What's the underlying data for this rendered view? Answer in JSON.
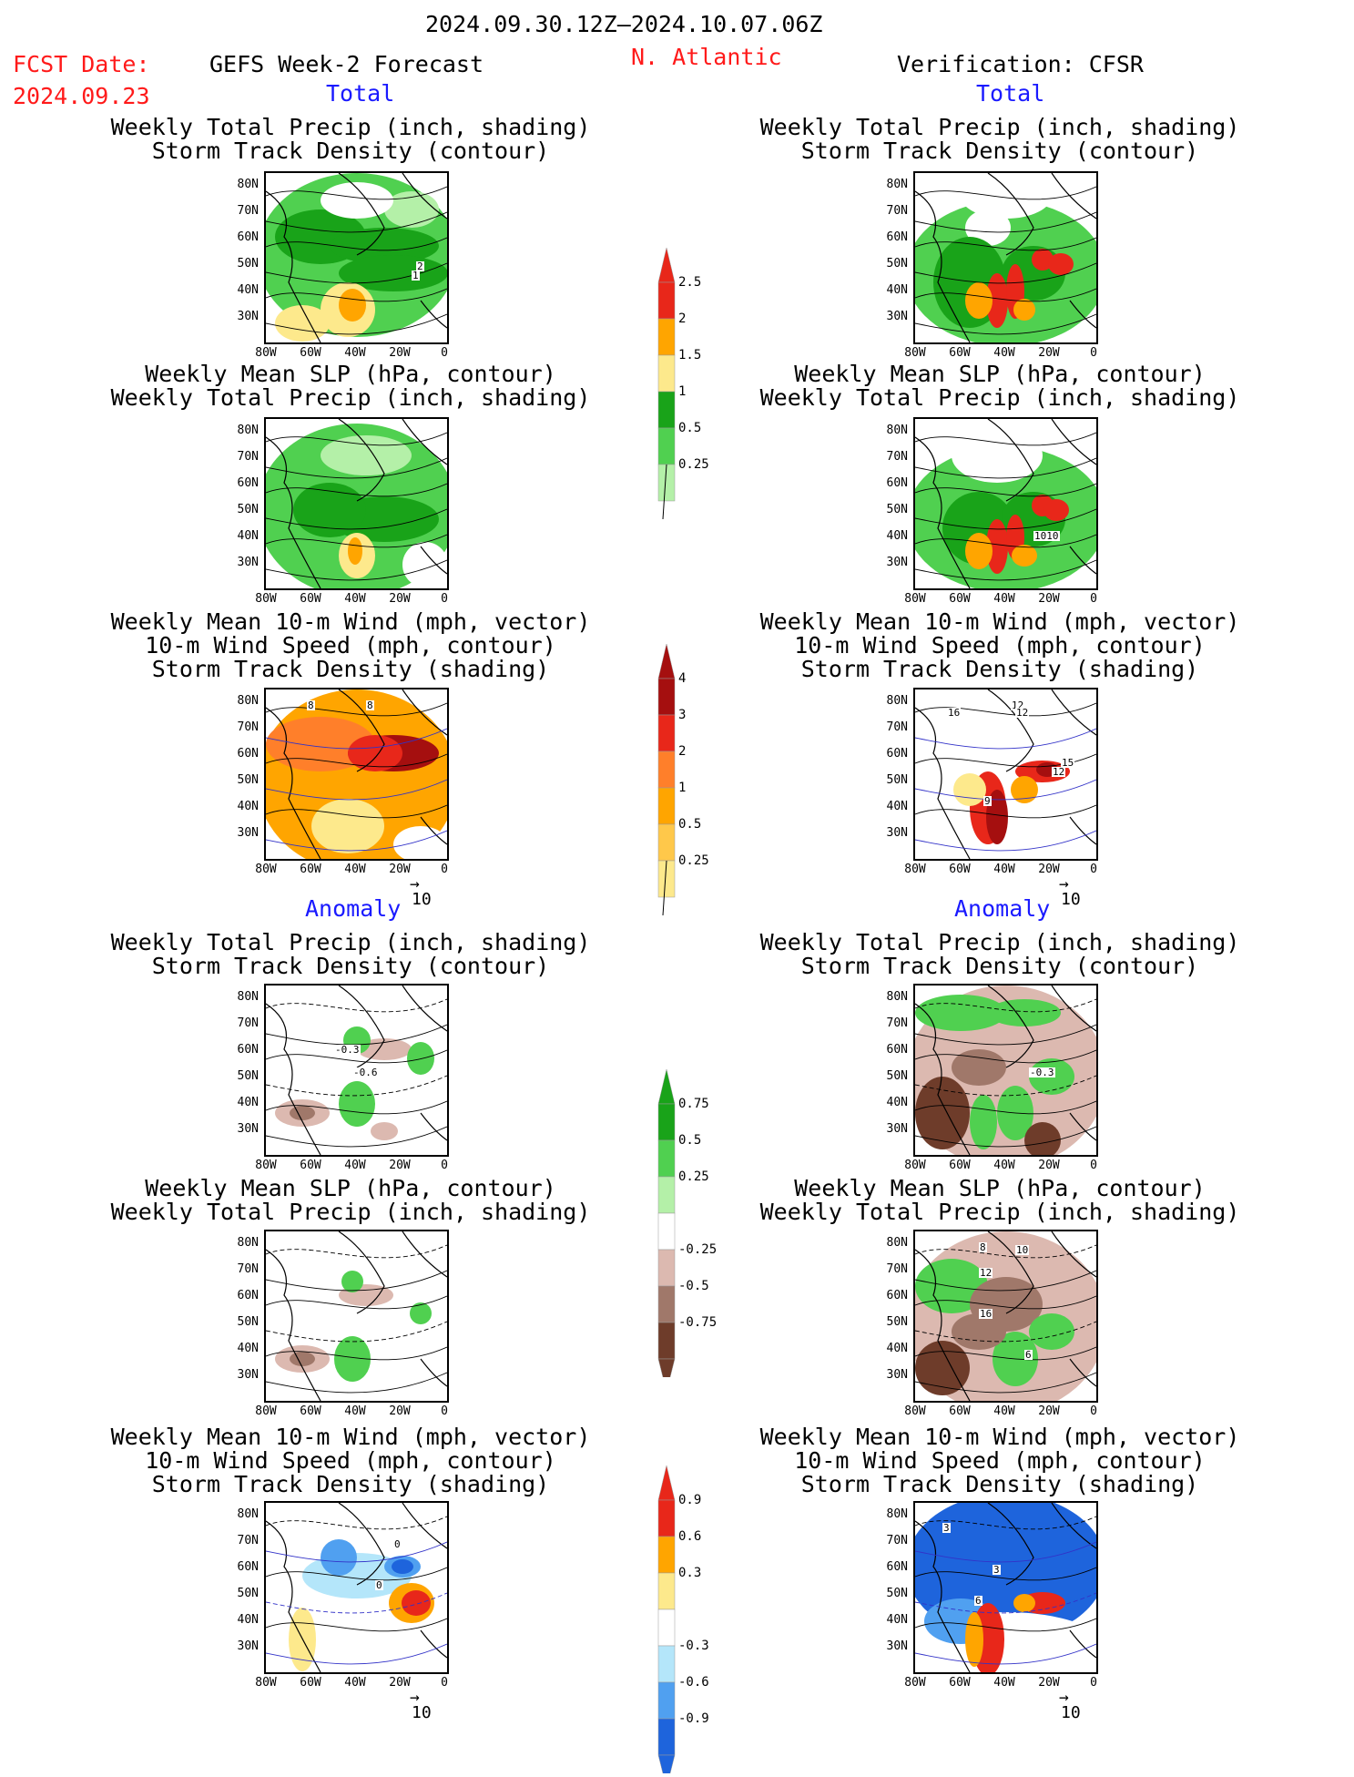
{
  "header": {
    "period": "2024.09.30.12Z–2024.10.07.06Z",
    "fcst_label": "FCST Date:",
    "fcst_date": "2024.09.23",
    "left_title": "GEFS Week-2 Forecast",
    "region": "N. Atlantic",
    "right_title": "Verification: CFSR",
    "total_label": "Total",
    "anomaly_label": "Anomaly"
  },
  "panel_titles": {
    "precip_storm": [
      "Weekly Total Precip (inch, shading)",
      "Storm Track Density (contour)"
    ],
    "slp_precip": [
      "Weekly Mean SLP (hPa, contour)",
      "Weekly Total Precip (inch, shading)"
    ],
    "wind": [
      "Weekly Mean 10-m Wind (mph, vector)",
      "10-m Wind Speed (mph, contour)",
      "Storm Track Density (shading)"
    ]
  },
  "axes": {
    "lat_ticks": [
      "80N",
      "70N",
      "60N",
      "50N",
      "40N",
      "30N"
    ],
    "lon_ticks": [
      "80W",
      "60W",
      "40W",
      "20W",
      "0"
    ]
  },
  "vector_ref": "10",
  "colorbars": {
    "precip_total": [
      "2.5",
      "2",
      "1.5",
      "1",
      "0.5",
      "0.25"
    ],
    "storm_total": [
      "4",
      "3",
      "2",
      "1",
      "0.5",
      "0.25"
    ],
    "precip_anom": [
      "0.75",
      "0.5",
      "0.25",
      "-0.25",
      "-0.5",
      "-0.75"
    ],
    "storm_anom": [
      "0.9",
      "0.6",
      "0.3",
      "-0.3",
      "-0.6",
      "-0.9"
    ]
  },
  "contour_labels": {
    "r1_left": [
      "2",
      "1"
    ],
    "r2_right": [
      "1010"
    ],
    "r3_left": [
      "8",
      "8"
    ],
    "r3_right": [
      "16",
      "12",
      "12",
      "12",
      "15",
      "9"
    ],
    "r4_left": [
      "-0.3",
      "-0.6"
    ],
    "r4_right": [
      "-0.3"
    ],
    "r5_right": [
      "8",
      "10",
      "12",
      "16",
      "6"
    ],
    "r6_left": [
      "0",
      "0"
    ],
    "r6_right": [
      "3",
      "3",
      "6"
    ]
  },
  "colors": {
    "text_red": "#ff1a1a",
    "text_blue": "#1a1aff",
    "green_light": "#b4f0a8",
    "green_mid": "#50d050",
    "green_dark": "#19a319",
    "yellow": "#fde98c",
    "orange": "#ffa500",
    "red": "#e8271a",
    "darkred": "#a50f0f",
    "brown_light": "#dcb9b0",
    "brown_mid": "#a0786a",
    "brown_dark": "#6e3c2a",
    "blue_light": "#b4e6fa",
    "blue_mid": "#50a0f0",
    "blue_dark": "#1e64dc"
  }
}
